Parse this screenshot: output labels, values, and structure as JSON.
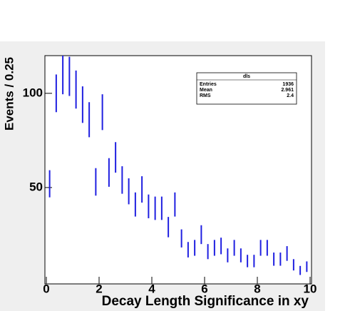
{
  "chart_data": {
    "type": "histogram-errorbar",
    "x_label": "Decay Length Significance in xy",
    "y_label": "Events / 0.25",
    "bins": [
      0,
      0.25,
      0.5,
      0.75,
      1,
      1.25,
      1.5,
      1.75,
      2,
      2.25,
      2.5,
      2.75,
      3,
      3.25,
      3.5,
      3.75,
      4,
      4.25,
      4.5,
      4.75,
      5,
      5.25,
      5.5,
      5.75,
      6,
      6.25,
      6.5,
      6.75,
      7,
      7.25,
      7.5,
      7.75,
      8,
      8.25,
      8.5,
      8.75,
      9,
      9.25,
      9.5,
      9.75,
      10
    ],
    "values": [
      52,
      100,
      110,
      109,
      102,
      94,
      86,
      53,
      90,
      58,
      66,
      54,
      48,
      41,
      49,
      40,
      39,
      39,
      29,
      41,
      23,
      17,
      18,
      25,
      16,
      18,
      19,
      14,
      18,
      14,
      11,
      11,
      18,
      18,
      12,
      12,
      15,
      9,
      6,
      8
    ],
    "errors": [
      7.2,
      10,
      10.5,
      10.4,
      10.1,
      9.7,
      9.3,
      7.3,
      9.5,
      7.6,
      8.1,
      7.3,
      6.9,
      6.4,
      7,
      6.3,
      6.2,
      6.2,
      5.4,
      6.4,
      4.8,
      4.1,
      4.2,
      5,
      4,
      4.2,
      4.4,
      3.7,
      4.2,
      3.7,
      3.3,
      3.3,
      4.2,
      4.2,
      3.5,
      3.5,
      3.9,
      3,
      2.4,
      2.8
    ],
    "color": "#1f1fe0",
    "xlim": [
      0,
      10
    ],
    "xticks": [
      0,
      2,
      4,
      6,
      8,
      10
    ],
    "ylim": [
      0,
      120
    ],
    "yticks": [
      50,
      100
    ],
    "stats": {
      "title": "dls",
      "rows": [
        {
          "name": "Entries",
          "value": 1936
        },
        {
          "name": "Mean",
          "value": 2.961
        },
        {
          "name": "RMS",
          "value": 2.4
        }
      ]
    }
  }
}
